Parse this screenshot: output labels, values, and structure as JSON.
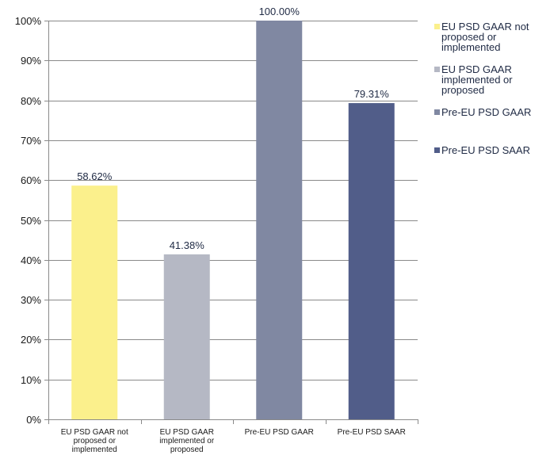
{
  "chart_data": {
    "type": "bar",
    "categories": [
      "EU PSD GAAR not proposed or implemented",
      "EU PSD GAAR implemented or proposed",
      "Pre-EU PSD GAAR",
      "Pre-EU PSD SAAR"
    ],
    "category_lines": [
      [
        "EU PSD GAAR not",
        "proposed or",
        "implemented"
      ],
      [
        "EU PSD GAAR",
        "implemented or",
        "proposed"
      ],
      [
        "Pre-EU PSD GAAR"
      ],
      [
        "Pre-EU PSD SAAR"
      ]
    ],
    "values": [
      58.62,
      41.38,
      100.0,
      79.31
    ],
    "data_labels": [
      "58.62%",
      "41.38%",
      "100.00%",
      "79.31%"
    ],
    "colors": [
      "#fbf08c",
      "#b5b8c4",
      "#8088a2",
      "#515d89"
    ],
    "y_ticks": [
      "0%",
      "10%",
      "20%",
      "30%",
      "40%",
      "50%",
      "60%",
      "70%",
      "80%",
      "90%",
      "100%"
    ],
    "ylim": [
      0,
      100
    ],
    "grid": true,
    "title": "",
    "xlabel": "",
    "ylabel": "",
    "legend": {
      "placement": "right",
      "entries": [
        "EU PSD GAAR not proposed or implemented",
        "EU PSD GAAR implemented or proposed",
        "Pre-EU PSD GAAR",
        "Pre-EU PSD SAAR"
      ]
    }
  }
}
